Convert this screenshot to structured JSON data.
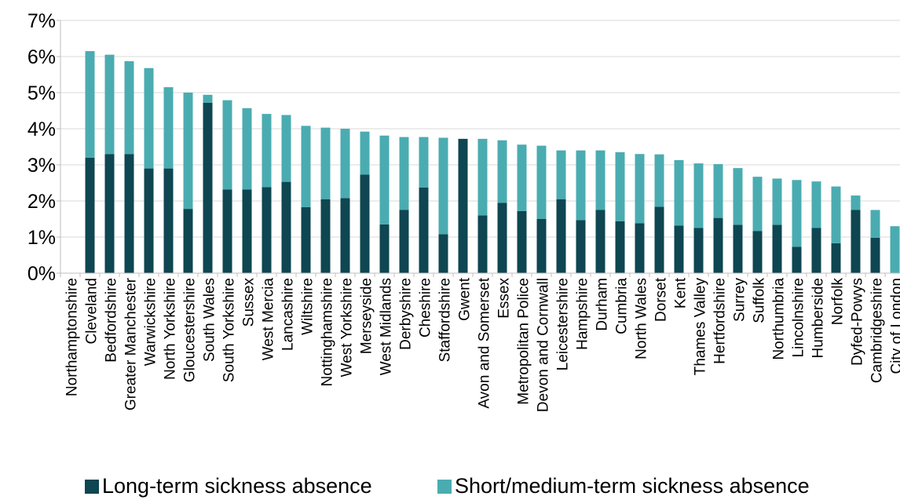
{
  "chart_data": {
    "type": "bar",
    "stacked": true,
    "title": "",
    "xlabel": "",
    "ylabel": "",
    "ylim": [
      0,
      7
    ],
    "yticks": [
      "0%",
      "1%",
      "2%",
      "3%",
      "4%",
      "5%",
      "6%",
      "7%"
    ],
    "grid": true,
    "legend_position": "bottom",
    "categories": [
      "Northamptonshire",
      "Cleveland",
      "Bedfordshire",
      "Greater Manchester",
      "Warwickshire",
      "North Yorkshire",
      "Gloucestershire",
      "South Wales",
      "South Yorkshire",
      "Sussex",
      "West Mercia",
      "Lancashire",
      "Wiltshire",
      "Nottinghamshire",
      "West Yorkshire",
      "Merseyside",
      "West Midlands",
      "Derbyshire",
      "Cheshire",
      "Staffordshire",
      "Gwent",
      "Avon and Somerset",
      "Essex",
      "Metropolitan Police",
      "Devon and Cornwall",
      "Leicestershire",
      "Hampshire",
      "Durham",
      "Cumbria",
      "North Wales",
      "Dorset",
      "Kent",
      "Thames Valley",
      "Hertfordshire",
      "Surrey",
      "Suffolk",
      "Northumbria",
      "Lincolnshire",
      "Humberside",
      "Norfolk",
      "Dyfed-Powys",
      "Cambridgeshire",
      "City of London"
    ],
    "series": [
      {
        "name": "Long-term sickness absence",
        "color": "#0e4651",
        "values": [
          0,
          3.2,
          3.3,
          3.3,
          2.9,
          2.9,
          1.78,
          4.72,
          2.32,
          2.32,
          2.38,
          2.53,
          1.83,
          2.05,
          2.08,
          2.73,
          1.35,
          1.75,
          2.37,
          1.08,
          3.72,
          1.6,
          1.95,
          1.72,
          1.5,
          2.05,
          1.47,
          1.75,
          1.44,
          1.38,
          1.84,
          1.32,
          1.25,
          1.53,
          1.34,
          1.17,
          1.34,
          0.73,
          1.25,
          0.83,
          1.75,
          0.98,
          0
        ]
      },
      {
        "name": "Short/medium-term sickness absence",
        "color": "#4aacb1",
        "values": [
          0,
          2.95,
          2.75,
          2.57,
          2.78,
          2.25,
          3.22,
          0.22,
          2.47,
          2.25,
          2.03,
          1.85,
          2.25,
          1.98,
          1.92,
          1.19,
          2.46,
          2.02,
          1.4,
          2.67,
          0,
          2.12,
          1.73,
          1.84,
          2.03,
          1.35,
          1.93,
          1.65,
          1.91,
          1.92,
          1.45,
          1.81,
          1.79,
          1.49,
          1.57,
          1.5,
          1.28,
          1.85,
          1.29,
          1.57,
          0.4,
          0.77,
          1.3
        ]
      }
    ]
  }
}
